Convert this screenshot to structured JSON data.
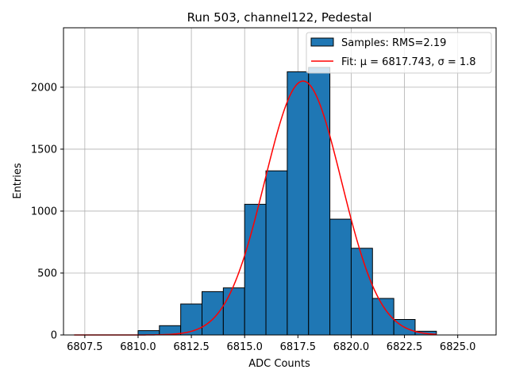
{
  "chart_data": {
    "type": "bar",
    "title": "Run 503, channel122, Pedestal",
    "xlabel": "ADC Counts",
    "ylabel": "Entries",
    "xlim": [
      6806.5,
      6826.8
    ],
    "ylim": [
      0,
      2480
    ],
    "xticks": [
      6807.5,
      6810.0,
      6812.5,
      6815.0,
      6817.5,
      6820.0,
      6822.5,
      6825.0
    ],
    "xtick_labels": [
      "6807.5",
      "6810.0",
      "6812.5",
      "6815.0",
      "6817.5",
      "6820.0",
      "6822.5",
      "6825.0"
    ],
    "yticks": [
      0,
      500,
      1000,
      1500,
      2000
    ],
    "ytick_labels": [
      "0",
      "500",
      "1000",
      "1500",
      "2000"
    ],
    "grid": true,
    "legend_position": "top-right",
    "bar_color": "#1f77b4",
    "fit_color": "#ff0000",
    "bins": [
      {
        "left": 6810.0,
        "right": 6811.0,
        "count": 35
      },
      {
        "left": 6811.0,
        "right": 6812.0,
        "count": 75
      },
      {
        "left": 6812.0,
        "right": 6813.0,
        "count": 250
      },
      {
        "left": 6813.0,
        "right": 6814.0,
        "count": 350
      },
      {
        "left": 6814.0,
        "right": 6815.0,
        "count": 380
      },
      {
        "left": 6815.0,
        "right": 6816.0,
        "count": 1055
      },
      {
        "left": 6816.0,
        "right": 6817.0,
        "count": 1325
      },
      {
        "left": 6817.0,
        "right": 6818.0,
        "count": 2125
      },
      {
        "left": 6818.0,
        "right": 6819.0,
        "count": 2160
      },
      {
        "left": 6819.0,
        "right": 6820.0,
        "count": 935
      },
      {
        "left": 6820.0,
        "right": 6821.0,
        "count": 700
      },
      {
        "left": 6821.0,
        "right": 6822.0,
        "count": 295
      },
      {
        "left": 6822.0,
        "right": 6823.0,
        "count": 125
      },
      {
        "left": 6823.0,
        "right": 6824.0,
        "count": 30
      }
    ],
    "fit": {
      "mu": 6817.743,
      "sigma": 1.8,
      "amplitude": 2050,
      "x_range": [
        6807.0,
        6824.0
      ]
    },
    "legend": [
      {
        "type": "patch",
        "label": "Samples: RMS=2.19"
      },
      {
        "type": "line",
        "label": "Fit: μ = 6817.743, σ = 1.8"
      }
    ]
  }
}
